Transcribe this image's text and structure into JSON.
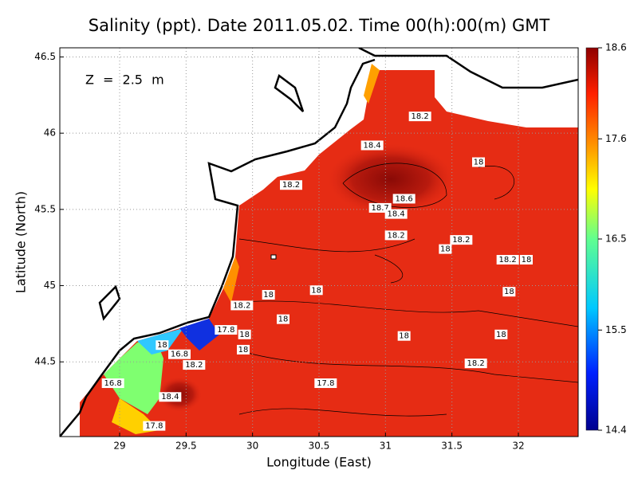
{
  "map": {
    "title": "Salinity (ppt). Date 2011.05.02. Time 00(h):00(m) GMT",
    "xlabel": "Longitude (East)",
    "ylabel": "Latitude (North)",
    "annotation": "Z = 2.5 m",
    "xlim": [
      28.55,
      32.45
    ],
    "ylim": [
      44.01,
      46.56
    ],
    "xticks": [
      29,
      29.5,
      30,
      30.5,
      31,
      31.5,
      32
    ],
    "yticks": [
      44.5,
      45,
      45.5,
      46,
      46.5
    ],
    "grid": true,
    "colorbar": {
      "lim": [
        14.4,
        18.6
      ],
      "ticks": [
        14.4,
        15.5,
        16.5,
        17.6,
        18.6
      ]
    },
    "contour_labels": [
      {
        "value": 18.2,
        "lon": 31.26,
        "lat": 46.11
      },
      {
        "value": 18.4,
        "lon": 30.9,
        "lat": 45.92
      },
      {
        "value": 18,
        "lon": 31.7,
        "lat": 45.81
      },
      {
        "value": 18.2,
        "lon": 30.29,
        "lat": 45.66
      },
      {
        "value": 18.6,
        "lon": 31.14,
        "lat": 45.57
      },
      {
        "value": 18.7,
        "lon": 30.96,
        "lat": 45.51
      },
      {
        "value": 18.4,
        "lon": 31.08,
        "lat": 45.47
      },
      {
        "value": 18.2,
        "lon": 31.08,
        "lat": 45.33
      },
      {
        "value": 18.2,
        "lon": 31.57,
        "lat": 45.3
      },
      {
        "value": 18,
        "lon": 31.45,
        "lat": 45.24
      },
      {
        "value": 18.2,
        "lon": 31.92,
        "lat": 45.17
      },
      {
        "value": 18,
        "lon": 32.06,
        "lat": 45.17
      },
      {
        "value": 18,
        "lon": 30.48,
        "lat": 44.97
      },
      {
        "value": 18,
        "lon": 30.12,
        "lat": 44.94
      },
      {
        "value": 18,
        "lon": 31.93,
        "lat": 44.96
      },
      {
        "value": 18.2,
        "lon": 29.92,
        "lat": 44.87
      },
      {
        "value": 18,
        "lon": 30.23,
        "lat": 44.78
      },
      {
        "value": 17.8,
        "lon": 29.8,
        "lat": 44.71
      },
      {
        "value": 18,
        "lon": 29.94,
        "lat": 44.68
      },
      {
        "value": 18,
        "lon": 31.14,
        "lat": 44.67
      },
      {
        "value": 18,
        "lon": 31.87,
        "lat": 44.68
      },
      {
        "value": 18,
        "lon": 29.93,
        "lat": 44.58
      },
      {
        "value": 18,
        "lon": 29.32,
        "lat": 44.61
      },
      {
        "value": 16.8,
        "lon": 29.45,
        "lat": 44.55
      },
      {
        "value": 18.2,
        "lon": 29.56,
        "lat": 44.48
      },
      {
        "value": 18.2,
        "lon": 31.68,
        "lat": 44.49
      },
      {
        "value": 17.8,
        "lon": 30.55,
        "lat": 44.36
      },
      {
        "value": 16.8,
        "lon": 28.95,
        "lat": 44.36
      },
      {
        "value": 18.4,
        "lon": 29.38,
        "lat": 44.27
      },
      {
        "value": 17.8,
        "lon": 29.26,
        "lat": 44.08
      }
    ]
  }
}
